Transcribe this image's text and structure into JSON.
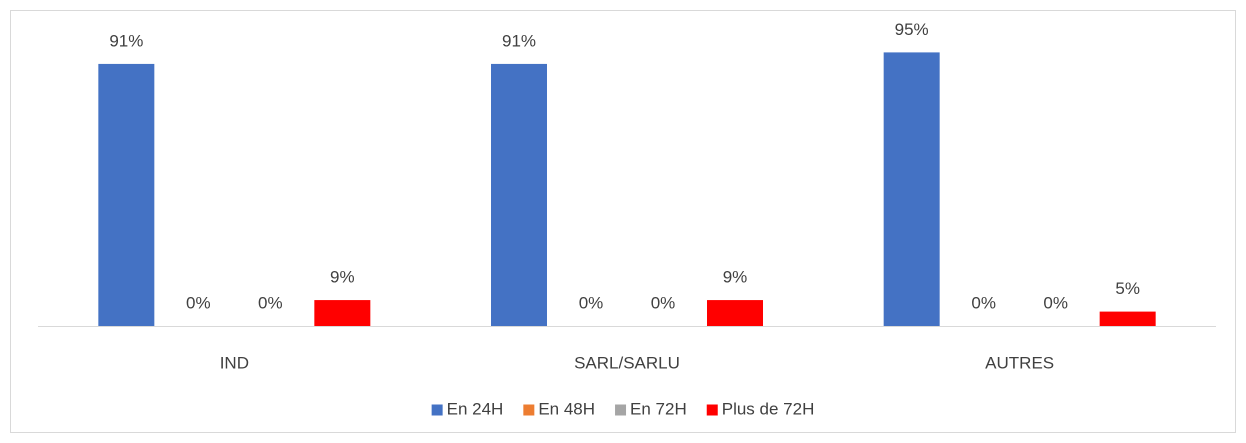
{
  "chart_data": {
    "type": "bar",
    "categories": [
      "IND",
      "SARL/SARLU",
      "AUTRES"
    ],
    "series": [
      {
        "name": "En 24H",
        "color": "#4472c4",
        "values": [
          91,
          91,
          95
        ],
        "value_labels": [
          "91%",
          "91%",
          "95%"
        ]
      },
      {
        "name": "En 48H",
        "color": "#ed7d31",
        "values": [
          0,
          0,
          0
        ],
        "value_labels": [
          "0%",
          "0%",
          "0%"
        ]
      },
      {
        "name": "En 72H",
        "color": "#a5a5a5",
        "values": [
          0,
          0,
          0
        ],
        "value_labels": [
          "0%",
          "0%",
          "0%"
        ]
      },
      {
        "name": "Plus de 72H",
        "color": "#ff0000",
        "values": [
          9,
          9,
          5
        ],
        "value_labels": [
          "9%",
          "9%",
          "5%"
        ]
      }
    ],
    "legend": "bottom"
  }
}
